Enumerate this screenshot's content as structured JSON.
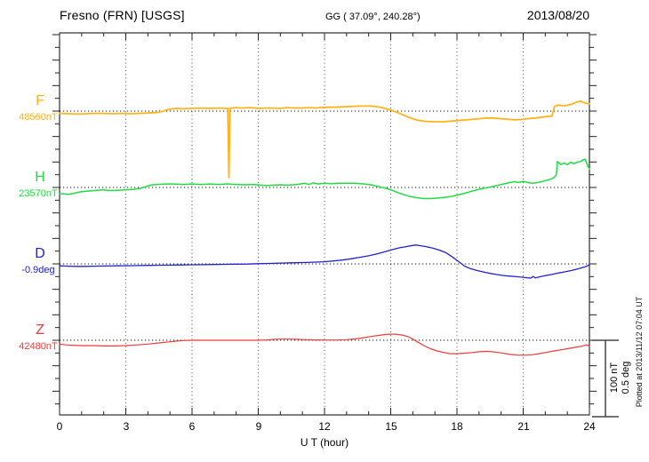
{
  "header": {
    "station": "Fresno (FRN)  [USGS]",
    "coords": "GG ( 37.09°, 240.28°)",
    "date": "2013/08/20"
  },
  "xaxis": {
    "label": "U T (hour)",
    "tick_labels": [
      "0",
      "3",
      "6",
      "9",
      "12",
      "15",
      "18",
      "21",
      "24"
    ]
  },
  "scalebar": {
    "label_nt": "100 nT",
    "label_deg": "0.5 deg"
  },
  "footer_note": "Plotted at 2013/11/12 07:04 UT",
  "channels": [
    {
      "label": "F",
      "value": "48560nT"
    },
    {
      "label": "H",
      "value": "23570nT"
    },
    {
      "label": "D",
      "value": "-0.9deg"
    },
    {
      "label": "Z",
      "value": "42480nT"
    }
  ],
  "chart_data": {
    "type": "line",
    "title": "Fresno (FRN) [USGS] magnetogram, 2013/08/20",
    "xlabel": "U T (hour)",
    "x_range": [
      0,
      24
    ],
    "x_ticks_major": [
      0,
      3,
      6,
      9,
      12,
      15,
      18,
      21,
      24
    ],
    "grid": "dotted vertical lines every 3 hours, dotted horizontal baseline per channel",
    "scale_per_division": {
      "magnetic": "100 nT",
      "declination": "0.5 deg"
    },
    "legend_position": "left margin channel labels",
    "series": [
      {
        "name": "F",
        "baseline_value": "48560nT",
        "unit": "nT",
        "color": "#FFB41E",
        "points": [
          [
            0,
            -3
          ],
          [
            0.4,
            -3.5
          ],
          [
            0.8,
            -4
          ],
          [
            1.2,
            -3.5
          ],
          [
            1.6,
            -3
          ],
          [
            2.0,
            -3
          ],
          [
            2.4,
            -3.5
          ],
          [
            2.8,
            -3
          ],
          [
            3.2,
            -3.5
          ],
          [
            3.6,
            -3
          ],
          [
            4.0,
            -2.5
          ],
          [
            4.4,
            -2
          ],
          [
            4.7,
            0
          ],
          [
            5.0,
            2.5
          ],
          [
            5.3,
            3.5
          ],
          [
            5.6,
            3
          ],
          [
            6.0,
            3.5
          ],
          [
            6.4,
            4
          ],
          [
            6.8,
            3.5
          ],
          [
            7.2,
            4
          ],
          [
            7.5,
            3.5
          ],
          [
            7.62,
            3.5
          ],
          [
            7.67,
            -87
          ],
          [
            7.72,
            3.5
          ],
          [
            8.0,
            4.5
          ],
          [
            8.3,
            4
          ],
          [
            8.6,
            4.5
          ],
          [
            9.0,
            3.5
          ],
          [
            9.3,
            4
          ],
          [
            9.6,
            4
          ],
          [
            10.0,
            3.5
          ],
          [
            10.3,
            4.5
          ],
          [
            10.6,
            4
          ],
          [
            11.0,
            4
          ],
          [
            11.3,
            4.5
          ],
          [
            11.6,
            4
          ],
          [
            12.0,
            5
          ],
          [
            12.4,
            5
          ],
          [
            12.8,
            5.5
          ],
          [
            13.2,
            6
          ],
          [
            13.6,
            6.5
          ],
          [
            14.0,
            6.5
          ],
          [
            14.3,
            6
          ],
          [
            14.6,
            4.5
          ],
          [
            15.0,
            1.5
          ],
          [
            15.4,
            -3
          ],
          [
            15.8,
            -8
          ],
          [
            16.2,
            -12
          ],
          [
            16.6,
            -13.5
          ],
          [
            17.0,
            -14
          ],
          [
            17.4,
            -14
          ],
          [
            17.8,
            -13
          ],
          [
            18.2,
            -12
          ],
          [
            18.6,
            -11
          ],
          [
            19.0,
            -10
          ],
          [
            19.4,
            -9
          ],
          [
            19.8,
            -9.5
          ],
          [
            20.2,
            -10.5
          ],
          [
            20.6,
            -11.5
          ],
          [
            20.9,
            -11
          ],
          [
            21.2,
            -10
          ],
          [
            21.6,
            -9
          ],
          [
            22.0,
            -7.5
          ],
          [
            22.3,
            -6.5
          ],
          [
            22.42,
            6
          ],
          [
            22.6,
            8
          ],
          [
            22.8,
            7
          ],
          [
            23.0,
            7.5
          ],
          [
            23.2,
            9
          ],
          [
            23.4,
            11.5
          ],
          [
            23.6,
            13
          ],
          [
            23.75,
            11
          ],
          [
            23.9,
            10
          ],
          [
            24,
            9.5
          ]
        ]
      },
      {
        "name": "H",
        "baseline_value": "23570nT",
        "unit": "nT",
        "color": "#21DC43",
        "points": [
          [
            0,
            -8
          ],
          [
            0.2,
            -8.5
          ],
          [
            0.4,
            -9
          ],
          [
            0.6,
            -8
          ],
          [
            0.8,
            -6.5
          ],
          [
            1.0,
            -5.5
          ],
          [
            1.2,
            -5
          ],
          [
            1.4,
            -4.5
          ],
          [
            1.6,
            -4
          ],
          [
            1.8,
            -3.5
          ],
          [
            2.0,
            -3
          ],
          [
            2.2,
            -4
          ],
          [
            2.5,
            -4
          ],
          [
            2.8,
            -3.5
          ],
          [
            3.0,
            -3
          ],
          [
            3.3,
            -2.5
          ],
          [
            3.6,
            -1.5
          ],
          [
            3.9,
            1
          ],
          [
            4.1,
            3
          ],
          [
            4.4,
            4
          ],
          [
            4.8,
            4.5
          ],
          [
            5.2,
            4.5
          ],
          [
            5.6,
            4
          ],
          [
            6.0,
            4.5
          ],
          [
            6.4,
            4
          ],
          [
            6.8,
            4.5
          ],
          [
            7.2,
            4
          ],
          [
            7.6,
            4.5
          ],
          [
            8.0,
            4
          ],
          [
            8.4,
            3.5
          ],
          [
            8.8,
            4
          ],
          [
            9.1,
            3
          ],
          [
            9.4,
            2.5
          ],
          [
            9.7,
            3
          ],
          [
            10.0,
            3.5
          ],
          [
            10.3,
            3
          ],
          [
            10.6,
            3.5
          ],
          [
            10.9,
            4.5
          ],
          [
            11.1,
            5.5
          ],
          [
            11.3,
            4
          ],
          [
            11.5,
            6
          ],
          [
            11.7,
            4.5
          ],
          [
            12.0,
            5.5
          ],
          [
            12.3,
            5
          ],
          [
            12.6,
            5.5
          ],
          [
            13.0,
            5.5
          ],
          [
            13.4,
            5.5
          ],
          [
            13.8,
            4.5
          ],
          [
            14.1,
            3.5
          ],
          [
            14.4,
            1.5
          ],
          [
            14.7,
            -0.5
          ],
          [
            15.0,
            -3
          ],
          [
            15.3,
            -6.5
          ],
          [
            15.6,
            -9.5
          ],
          [
            15.9,
            -12
          ],
          [
            16.2,
            -13.5
          ],
          [
            16.5,
            -14.5
          ],
          [
            16.8,
            -14.5
          ],
          [
            17.1,
            -14
          ],
          [
            17.4,
            -13
          ],
          [
            17.7,
            -12
          ],
          [
            18.0,
            -10
          ],
          [
            18.3,
            -8
          ],
          [
            18.6,
            -5.5
          ],
          [
            18.9,
            -3
          ],
          [
            19.2,
            -1
          ],
          [
            19.5,
            0.5
          ],
          [
            19.8,
            2.5
          ],
          [
            20.1,
            4.5
          ],
          [
            20.4,
            6.5
          ],
          [
            20.6,
            7.5
          ],
          [
            20.8,
            6.5
          ],
          [
            21.0,
            8
          ],
          [
            21.2,
            6.5
          ],
          [
            21.4,
            5.5
          ],
          [
            21.6,
            6
          ],
          [
            21.8,
            7.5
          ],
          [
            22.0,
            9
          ],
          [
            22.2,
            10.5
          ],
          [
            22.4,
            13
          ],
          [
            22.5,
            17
          ],
          [
            22.55,
            34
          ],
          [
            22.7,
            30
          ],
          [
            22.85,
            32
          ],
          [
            23.0,
            30
          ],
          [
            23.15,
            33
          ],
          [
            23.3,
            31
          ],
          [
            23.45,
            33
          ],
          [
            23.6,
            34
          ],
          [
            23.7,
            36
          ],
          [
            23.8,
            37
          ],
          [
            23.9,
            30
          ],
          [
            24,
            24
          ]
        ]
      },
      {
        "name": "D",
        "baseline_value": "-0.9deg",
        "unit": "deg",
        "color": "#2222CC",
        "points": [
          [
            0,
            -0.013
          ],
          [
            0.4,
            -0.015
          ],
          [
            0.8,
            -0.016
          ],
          [
            1.2,
            -0.016
          ],
          [
            1.6,
            -0.015
          ],
          [
            2.0,
            -0.014
          ],
          [
            2.5,
            -0.013
          ],
          [
            3.0,
            -0.012
          ],
          [
            3.5,
            -0.011
          ],
          [
            4.0,
            -0.01
          ],
          [
            4.5,
            -0.009
          ],
          [
            5.0,
            -0.008
          ],
          [
            5.5,
            -0.007
          ],
          [
            6.0,
            -0.006
          ],
          [
            6.5,
            -0.005
          ],
          [
            7.0,
            -0.004
          ],
          [
            7.5,
            -0.003
          ],
          [
            8.0,
            -0.002
          ],
          [
            8.5,
            -0.001
          ],
          [
            9.0,
            0.001
          ],
          [
            9.5,
            0.003
          ],
          [
            10.0,
            0.005
          ],
          [
            10.5,
            0.007
          ],
          [
            11.0,
            0.009
          ],
          [
            11.5,
            0.011
          ],
          [
            12.0,
            0.014
          ],
          [
            12.4,
            0.019
          ],
          [
            12.8,
            0.025
          ],
          [
            13.2,
            0.033
          ],
          [
            13.6,
            0.043
          ],
          [
            14.0,
            0.053
          ],
          [
            14.4,
            0.066
          ],
          [
            14.8,
            0.082
          ],
          [
            15.1,
            0.095
          ],
          [
            15.4,
            0.105
          ],
          [
            15.7,
            0.113
          ],
          [
            16.0,
            0.121
          ],
          [
            16.15,
            0.123
          ],
          [
            16.3,
            0.12
          ],
          [
            16.6,
            0.113
          ],
          [
            16.9,
            0.103
          ],
          [
            17.2,
            0.09
          ],
          [
            17.5,
            0.073
          ],
          [
            17.8,
            0.045
          ],
          [
            18.1,
            0.012
          ],
          [
            18.35,
            -0.015
          ],
          [
            18.6,
            -0.031
          ],
          [
            18.9,
            -0.043
          ],
          [
            19.2,
            -0.053
          ],
          [
            19.5,
            -0.062
          ],
          [
            19.8,
            -0.07
          ],
          [
            20.1,
            -0.076
          ],
          [
            20.4,
            -0.08
          ],
          [
            20.7,
            -0.084
          ],
          [
            21.0,
            -0.088
          ],
          [
            21.2,
            -0.091
          ],
          [
            21.35,
            -0.093
          ],
          [
            21.45,
            -0.082
          ],
          [
            21.55,
            -0.092
          ],
          [
            21.8,
            -0.083
          ],
          [
            22.0,
            -0.077
          ],
          [
            22.3,
            -0.069
          ],
          [
            22.6,
            -0.06
          ],
          [
            22.9,
            -0.052
          ],
          [
            23.2,
            -0.043
          ],
          [
            23.5,
            -0.032
          ],
          [
            23.8,
            -0.02
          ],
          [
            23.95,
            -0.01
          ],
          [
            24,
            -0.003
          ]
        ]
      },
      {
        "name": "Z",
        "baseline_value": "42480nT",
        "unit": "nT",
        "color": "#EE3B3B",
        "points": [
          [
            0,
            -5
          ],
          [
            0.3,
            -6
          ],
          [
            0.6,
            -6.5
          ],
          [
            1.0,
            -7
          ],
          [
            1.5,
            -7
          ],
          [
            2.0,
            -7.5
          ],
          [
            2.5,
            -7.5
          ],
          [
            3.0,
            -7
          ],
          [
            3.5,
            -6
          ],
          [
            4.0,
            -5
          ],
          [
            4.5,
            -3.5
          ],
          [
            5.0,
            -2
          ],
          [
            5.3,
            -1
          ],
          [
            5.6,
            -0.3
          ],
          [
            6.0,
            0
          ],
          [
            6.5,
            0
          ],
          [
            7.0,
            0
          ],
          [
            7.5,
            0
          ],
          [
            8.0,
            0
          ],
          [
            8.5,
            0
          ],
          [
            9.0,
            0
          ],
          [
            9.4,
            0.5
          ],
          [
            9.7,
            1.2
          ],
          [
            10.0,
            1.5
          ],
          [
            10.4,
            1.5
          ],
          [
            10.8,
            1.2
          ],
          [
            11.2,
            0.8
          ],
          [
            11.6,
            0.5
          ],
          [
            12.0,
            0.3
          ],
          [
            12.5,
            0.3
          ],
          [
            13.0,
            0.8
          ],
          [
            13.4,
            1.8
          ],
          [
            13.8,
            3.5
          ],
          [
            14.2,
            5.5
          ],
          [
            14.6,
            7
          ],
          [
            14.9,
            8
          ],
          [
            15.2,
            8
          ],
          [
            15.5,
            7
          ],
          [
            15.8,
            4.5
          ],
          [
            16.0,
            1.5
          ],
          [
            16.2,
            -2
          ],
          [
            16.5,
            -7
          ],
          [
            16.8,
            -11
          ],
          [
            17.1,
            -14
          ],
          [
            17.4,
            -16
          ],
          [
            17.7,
            -17.5
          ],
          [
            18.0,
            -17.5
          ],
          [
            18.3,
            -17
          ],
          [
            18.7,
            -16
          ],
          [
            19.0,
            -15
          ],
          [
            19.3,
            -14.5
          ],
          [
            19.6,
            -15
          ],
          [
            20.0,
            -16.5
          ],
          [
            20.4,
            -18.5
          ],
          [
            20.8,
            -19.5
          ],
          [
            21.1,
            -19.5
          ],
          [
            21.4,
            -19
          ],
          [
            21.7,
            -17.5
          ],
          [
            22.0,
            -16
          ],
          [
            22.4,
            -14
          ],
          [
            22.8,
            -12
          ],
          [
            23.2,
            -10
          ],
          [
            23.6,
            -8
          ],
          [
            23.8,
            -6.5
          ],
          [
            23.9,
            -6
          ],
          [
            24,
            -8
          ]
        ]
      }
    ]
  }
}
